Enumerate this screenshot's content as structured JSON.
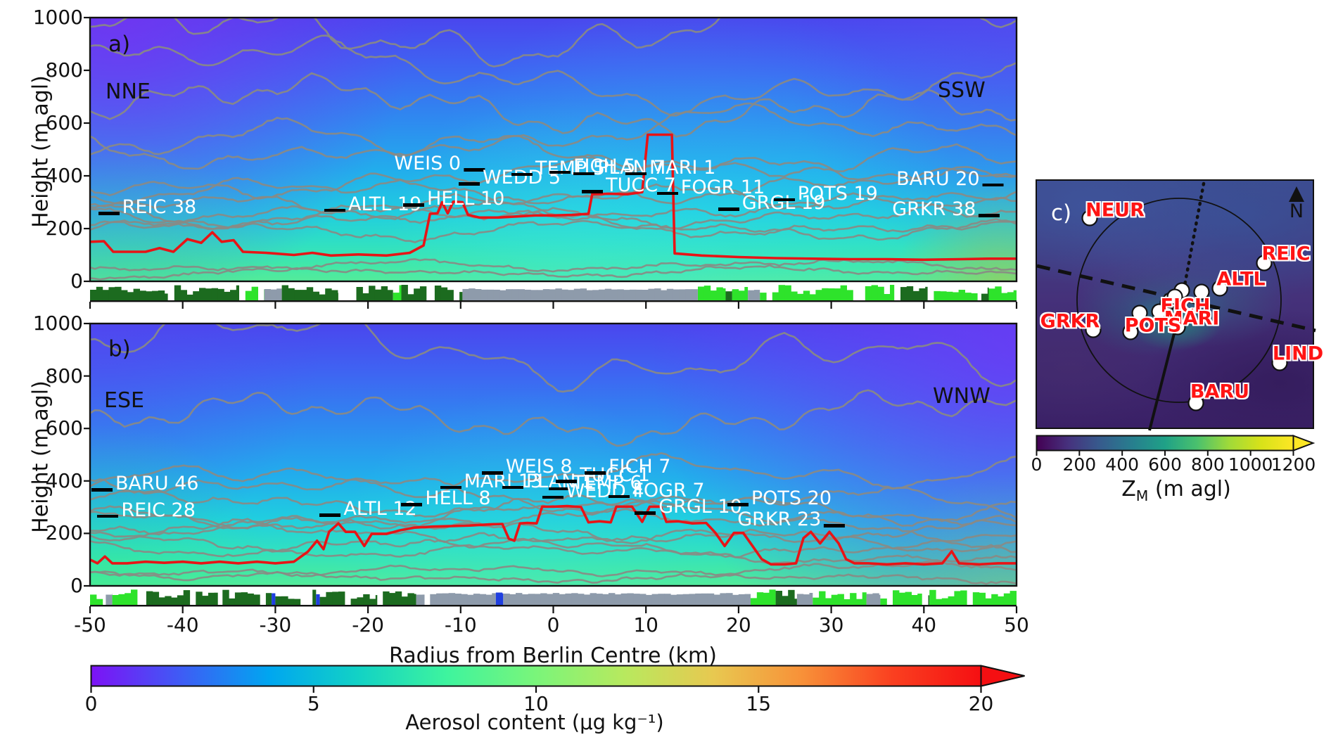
{
  "figure": {
    "xlabel": "Radius from Berlin Centre (km)",
    "ylabel": "Height (m agl)",
    "x_ticks": [
      -50,
      -40,
      -30,
      -20,
      -10,
      0,
      10,
      20,
      30,
      40,
      50
    ],
    "y_ticks": [
      0,
      200,
      400,
      600,
      800,
      1000
    ]
  },
  "aerosol_colorbar": {
    "label": "Aerosol content (μg kg⁻¹)",
    "ticks": [
      0,
      5,
      10,
      15,
      20
    ],
    "min": 0,
    "max": 20,
    "gradient": [
      "#7d12f5",
      "#3f5bf5",
      "#00a6f0",
      "#12d2c5",
      "#3ef49e",
      "#7af57a",
      "#b8e95e",
      "#e8c850",
      "#f89038",
      "#fa4020",
      "#f50f12"
    ]
  },
  "colors": {
    "surface": {
      "forest": "#1c6b1f",
      "grass": "#2ee32b",
      "urban": "#8e9bab",
      "water": "#1f3fe0"
    },
    "red_contour": "#e81416",
    "grey_contour": "#8a8a84",
    "station_text": "#ffffff",
    "map_label": "#ff1414"
  },
  "chart_data": [
    {
      "type": "heatmap",
      "panel_label": "a)",
      "left_label": "NNE",
      "right_label": "SSW",
      "xlabel": "Radius from Berlin Centre (km)",
      "ylabel": "Height (m agl)",
      "xlim": [
        -50,
        50
      ],
      "ylim": [
        0,
        1000
      ],
      "stations": [
        {
          "label": "REIC 38",
          "x_km": -47.9,
          "y_m": 280,
          "dash": "left"
        },
        {
          "label": "ALTL 19",
          "x_km": -23.5,
          "y_m": 292,
          "dash": "left"
        },
        {
          "label": "HELL 10",
          "x_km": -15.0,
          "y_m": 312,
          "dash": "left"
        },
        {
          "label": "WEIS 0",
          "x_km": -7.4,
          "y_m": 445,
          "dash": "right"
        },
        {
          "label": "WEDD 5",
          "x_km": -9.0,
          "y_m": 392,
          "dash": "left"
        },
        {
          "label": "TEMP 5",
          "x_km": -3.3,
          "y_m": 428,
          "dash": "left"
        },
        {
          "label": "FICH 5",
          "x_km": 0.8,
          "y_m": 436,
          "dash": "left"
        },
        {
          "label": "PLAN 7",
          "x_km": 3.4,
          "y_m": 430,
          "dash": "left"
        },
        {
          "label": "MARI 1",
          "x_km": 9.0,
          "y_m": 430,
          "dash": "left"
        },
        {
          "label": "TUCC 7",
          "x_km": 4.3,
          "y_m": 362,
          "dash": "left"
        },
        {
          "label": "FOGR 11",
          "x_km": 12.4,
          "y_m": 356,
          "dash": "left"
        },
        {
          "label": "GRGL 19",
          "x_km": 19.0,
          "y_m": 296,
          "dash": "left"
        },
        {
          "label": "POTS 19",
          "x_km": 25.0,
          "y_m": 332,
          "dash": "left"
        },
        {
          "label": "GRKR 38",
          "x_km": 48.2,
          "y_m": 272,
          "dash": "right"
        },
        {
          "label": "BARU 20",
          "x_km": 48.6,
          "y_m": 388,
          "dash": "right"
        }
      ],
      "grey_contour_levels_m": [
        955,
        775,
        655,
        560,
        475,
        405,
        345,
        305,
        275,
        248,
        222,
        196,
        60,
        35
      ],
      "red_contour_km_m": [
        [
          -50,
          150
        ],
        [
          -48.5,
          152
        ],
        [
          -47.5,
          112
        ],
        [
          -44,
          112
        ],
        [
          -42.5,
          126
        ],
        [
          -41,
          112
        ],
        [
          -39.5,
          160
        ],
        [
          -38,
          146
        ],
        [
          -36.8,
          186
        ],
        [
          -35.8,
          150
        ],
        [
          -34.5,
          156
        ],
        [
          -33.5,
          112
        ],
        [
          -31,
          108
        ],
        [
          -28,
          100
        ],
        [
          -26,
          108
        ],
        [
          -24,
          98
        ],
        [
          -21,
          102
        ],
        [
          -18,
          98
        ],
        [
          -15.5,
          108
        ],
        [
          -14,
          136
        ],
        [
          -13.3,
          256
        ],
        [
          -12.5,
          258
        ],
        [
          -12,
          300
        ],
        [
          -11.4,
          258
        ],
        [
          -10.8,
          302
        ],
        [
          -9.8,
          300
        ],
        [
          -9.2,
          252
        ],
        [
          -8,
          242
        ],
        [
          -6,
          242
        ],
        [
          -4,
          246
        ],
        [
          -2,
          250
        ],
        [
          0,
          250
        ],
        [
          2,
          252
        ],
        [
          3.8,
          256
        ],
        [
          4.2,
          330
        ],
        [
          6,
          332
        ],
        [
          8,
          330
        ],
        [
          9.6,
          338
        ],
        [
          10.2,
          556
        ],
        [
          12.8,
          556
        ],
        [
          13.1,
          106
        ],
        [
          16,
          98
        ],
        [
          20,
          92
        ],
        [
          24,
          88
        ],
        [
          28,
          86
        ],
        [
          32,
          84
        ],
        [
          36,
          84
        ],
        [
          40,
          82
        ],
        [
          44,
          84
        ],
        [
          47,
          86
        ],
        [
          50,
          86
        ]
      ],
      "surface_segments": [
        {
          "from_km": -50,
          "to_km": -41.6,
          "class": "forest"
        },
        {
          "from_km": -41.6,
          "to_km": -40.9,
          "class": "gap"
        },
        {
          "from_km": -40.9,
          "to_km": -33.9,
          "class": "forest"
        },
        {
          "from_km": -33.9,
          "to_km": -31.2,
          "class": "grass"
        },
        {
          "from_km": -31.2,
          "to_km": -29.3,
          "class": "urban"
        },
        {
          "from_km": -29.3,
          "to_km": -23.2,
          "class": "forest"
        },
        {
          "from_km": -23.2,
          "to_km": -22.6,
          "class": "gap"
        },
        {
          "from_km": -22.6,
          "to_km": -17.3,
          "class": "forest"
        },
        {
          "from_km": -17.3,
          "to_km": -16.4,
          "class": "grass"
        },
        {
          "from_km": -16.4,
          "to_km": -13.4,
          "class": "forest"
        },
        {
          "from_km": -13.4,
          "to_km": -12.8,
          "class": "gap"
        },
        {
          "from_km": -12.8,
          "to_km": -9.8,
          "class": "forest"
        },
        {
          "from_km": -9.8,
          "to_km": 15.6,
          "class": "urban"
        },
        {
          "from_km": 15.6,
          "to_km": 18.6,
          "class": "grass"
        },
        {
          "from_km": 18.6,
          "to_km": 19.3,
          "class": "forest"
        },
        {
          "from_km": 19.3,
          "to_km": 21.0,
          "class": "grass"
        },
        {
          "from_km": 21.0,
          "to_km": 22.3,
          "class": "urban"
        },
        {
          "from_km": 22.3,
          "to_km": 36.8,
          "class": "grass"
        },
        {
          "from_km": 36.8,
          "to_km": 40.4,
          "class": "forest"
        },
        {
          "from_km": 40.4,
          "to_km": 46.2,
          "class": "grass"
        },
        {
          "from_km": 46.2,
          "to_km": 47.0,
          "class": "forest"
        },
        {
          "from_km": 47.0,
          "to_km": 50.0,
          "class": "grass"
        }
      ]
    },
    {
      "type": "heatmap",
      "panel_label": "b)",
      "left_label": "ESE",
      "right_label": "WNW",
      "xlabel": "Radius from Berlin Centre (km)",
      "ylabel": "Height (m agl)",
      "xlim": [
        -50,
        50
      ],
      "ylim": [
        0,
        1000
      ],
      "stations": [
        {
          "label": "BARU 46",
          "x_km": -50.0,
          "y_m": 388,
          "dash": "left"
        },
        {
          "label": "REIC 28",
          "x_km": -48.0,
          "y_m": 288,
          "dash": "left"
        },
        {
          "label": "ALTL 12",
          "x_km": -24.0,
          "y_m": 292,
          "dash": "left"
        },
        {
          "label": "HELL 8",
          "x_km": -15.2,
          "y_m": 332,
          "dash": "left"
        },
        {
          "label": "MARI 13",
          "x_km": -11.0,
          "y_m": 398,
          "dash": "left"
        },
        {
          "label": "PLAN 1",
          "x_km": -4.3,
          "y_m": 398,
          "dash": "left"
        },
        {
          "label": "WEIS 8",
          "x_km": -6.5,
          "y_m": 452,
          "dash": "left"
        },
        {
          "label": "TEMP 6",
          "x_km": 0.7,
          "y_m": 392,
          "dash": "left"
        },
        {
          "label": "TUCC 1",
          "x_km": 1.5,
          "y_m": 420,
          "dash": "left"
        },
        {
          "label": "FICH 7",
          "x_km": 4.6,
          "y_m": 452,
          "dash": "left"
        },
        {
          "label": "WEDD 4",
          "x_km": 0.0,
          "y_m": 360,
          "dash": "left"
        },
        {
          "label": "FOGR 7",
          "x_km": 7.2,
          "y_m": 362,
          "dash": "left"
        },
        {
          "label": "GRGL 10",
          "x_km": 10.0,
          "y_m": 300,
          "dash": "left"
        },
        {
          "label": "POTS 20",
          "x_km": 20.0,
          "y_m": 332,
          "dash": "left"
        },
        {
          "label": "GRKR 23",
          "x_km": 31.5,
          "y_m": 252,
          "dash": "right"
        }
      ],
      "grey_contour_levels_m": [
        885,
        640,
        420,
        345,
        308,
        275,
        245,
        215,
        185,
        155,
        125,
        58,
        32
      ],
      "red_contour_km_m": [
        [
          -50,
          100
        ],
        [
          -49.2,
          86
        ],
        [
          -48.4,
          112
        ],
        [
          -47.6,
          86
        ],
        [
          -46,
          86
        ],
        [
          -44,
          92
        ],
        [
          -42,
          88
        ],
        [
          -40,
          92
        ],
        [
          -38,
          86
        ],
        [
          -36,
          92
        ],
        [
          -34,
          86
        ],
        [
          -32,
          92
        ],
        [
          -30,
          86
        ],
        [
          -28,
          92
        ],
        [
          -26.5,
          130
        ],
        [
          -25.5,
          172
        ],
        [
          -24.8,
          140
        ],
        [
          -24.2,
          206
        ],
        [
          -23.2,
          238
        ],
        [
          -22.4,
          206
        ],
        [
          -21.4,
          206
        ],
        [
          -20.4,
          152
        ],
        [
          -19.6,
          198
        ],
        [
          -18,
          198
        ],
        [
          -16.5,
          212
        ],
        [
          -15,
          222
        ],
        [
          -13,
          226
        ],
        [
          -11,
          228
        ],
        [
          -9,
          230
        ],
        [
          -7,
          234
        ],
        [
          -5.5,
          236
        ],
        [
          -4.8,
          180
        ],
        [
          -4.2,
          172
        ],
        [
          -3.6,
          238
        ],
        [
          -2.8,
          240
        ],
        [
          -1.8,
          238
        ],
        [
          -1.2,
          302
        ],
        [
          0,
          302
        ],
        [
          1.5,
          304
        ],
        [
          3,
          300
        ],
        [
          3.8,
          242
        ],
        [
          5,
          246
        ],
        [
          6.2,
          242
        ],
        [
          6.8,
          302
        ],
        [
          8.5,
          302
        ],
        [
          9.6,
          244
        ],
        [
          10.4,
          302
        ],
        [
          11.6,
          302
        ],
        [
          12.2,
          244
        ],
        [
          13.5,
          246
        ],
        [
          15,
          238
        ],
        [
          16.5,
          240
        ],
        [
          17.5,
          202
        ],
        [
          18.5,
          152
        ],
        [
          19.5,
          202
        ],
        [
          20.5,
          202
        ],
        [
          21.5,
          152
        ],
        [
          22.5,
          102
        ],
        [
          23.5,
          82
        ],
        [
          25,
          82
        ],
        [
          26.2,
          86
        ],
        [
          27,
          182
        ],
        [
          27.8,
          206
        ],
        [
          28.8,
          162
        ],
        [
          29.8,
          206
        ],
        [
          30.8,
          162
        ],
        [
          31.6,
          102
        ],
        [
          32.5,
          86
        ],
        [
          34,
          86
        ],
        [
          36,
          82
        ],
        [
          38,
          86
        ],
        [
          40,
          82
        ],
        [
          42,
          86
        ],
        [
          43,
          132
        ],
        [
          43.8,
          86
        ],
        [
          46,
          82
        ],
        [
          48,
          86
        ],
        [
          50,
          86
        ]
      ],
      "surface_segments": [
        {
          "from_km": -50,
          "to_km": -48.3,
          "class": "grass"
        },
        {
          "from_km": -48.3,
          "to_km": -47.6,
          "class": "urban"
        },
        {
          "from_km": -47.6,
          "to_km": -44.6,
          "class": "grass"
        },
        {
          "from_km": -44.6,
          "to_km": -36.2,
          "class": "forest"
        },
        {
          "from_km": -36.2,
          "to_km": -35.7,
          "class": "gap"
        },
        {
          "from_km": -35.7,
          "to_km": -30.4,
          "class": "forest"
        },
        {
          "from_km": -30.4,
          "to_km": -30.0,
          "class": "water"
        },
        {
          "from_km": -30.0,
          "to_km": -25.6,
          "class": "forest"
        },
        {
          "from_km": -25.6,
          "to_km": -25.2,
          "class": "water"
        },
        {
          "from_km": -25.2,
          "to_km": -19.0,
          "class": "forest"
        },
        {
          "from_km": -19.0,
          "to_km": -18.4,
          "class": "gap"
        },
        {
          "from_km": -18.4,
          "to_km": -14.8,
          "class": "forest"
        },
        {
          "from_km": -14.8,
          "to_km": -13.9,
          "class": "urban"
        },
        {
          "from_km": -13.9,
          "to_km": -13.3,
          "class": "gap"
        },
        {
          "from_km": -13.3,
          "to_km": -6.2,
          "class": "urban"
        },
        {
          "from_km": -6.2,
          "to_km": -5.4,
          "class": "water"
        },
        {
          "from_km": -5.4,
          "to_km": 21.3,
          "class": "urban"
        },
        {
          "from_km": 21.3,
          "to_km": 24.0,
          "class": "grass"
        },
        {
          "from_km": 24.0,
          "to_km": 26.3,
          "class": "forest"
        },
        {
          "from_km": 26.3,
          "to_km": 28.0,
          "class": "urban"
        },
        {
          "from_km": 28.0,
          "to_km": 33.8,
          "class": "grass"
        },
        {
          "from_km": 33.8,
          "to_km": 35.3,
          "class": "urban"
        },
        {
          "from_km": 35.3,
          "to_km": 39.8,
          "class": "grass"
        },
        {
          "from_km": 39.8,
          "to_km": 40.6,
          "class": "forest"
        },
        {
          "from_km": 40.6,
          "to_km": 50.0,
          "class": "grass"
        }
      ]
    },
    {
      "type": "map",
      "panel_label": "c)",
      "north_label": "N",
      "stations": [
        {
          "label": "NEUR",
          "dot": [
            75,
            53
          ],
          "text": [
            111,
            42
          ]
        },
        {
          "label": "REIC",
          "dot": [
            323,
            117
          ],
          "text": [
            354,
            104
          ]
        },
        {
          "label": "ALTL",
          "dot": [
            260,
            153
          ],
          "text": [
            290,
            140
          ]
        },
        {
          "label": "FICH",
          "dot": [
            196,
            165
          ],
          "text": [
            211,
            178
          ]
        },
        {
          "label": "MARI",
          "dot": [
            200,
            208
          ],
          "text": [
            220,
            196
          ]
        },
        {
          "label": "POTS",
          "dot": [
            133,
            215
          ],
          "text": [
            165,
            206
          ]
        },
        {
          "label": "GRKR",
          "dot": [
            80,
            212
          ],
          "text": [
            47,
            200
          ]
        },
        {
          "label": "LIND",
          "dot": [
            345,
            259
          ],
          "text": [
            371,
            246
          ]
        },
        {
          "label": "BARU",
          "dot": [
            226,
            316
          ],
          "text": [
            260,
            300
          ]
        }
      ],
      "extra_dots": [
        [
          234,
          158
        ],
        [
          206,
          156
        ],
        [
          186,
          174
        ],
        [
          174,
          186
        ],
        [
          146,
          188
        ],
        [
          190,
          170
        ]
      ],
      "colorbar": {
        "label_main": "Z",
        "label_sub": "M",
        "label_unit": " (m agl)",
        "ticks": [
          0,
          200,
          400,
          600,
          800,
          1000,
          1200
        ],
        "min": 0,
        "max": 1200,
        "gradient": [
          "#440154",
          "#46327e",
          "#365c8d",
          "#277f8e",
          "#1fa187",
          "#4ac16d",
          "#a0da39",
          "#d8e219",
          "#fde725"
        ]
      }
    }
  ]
}
